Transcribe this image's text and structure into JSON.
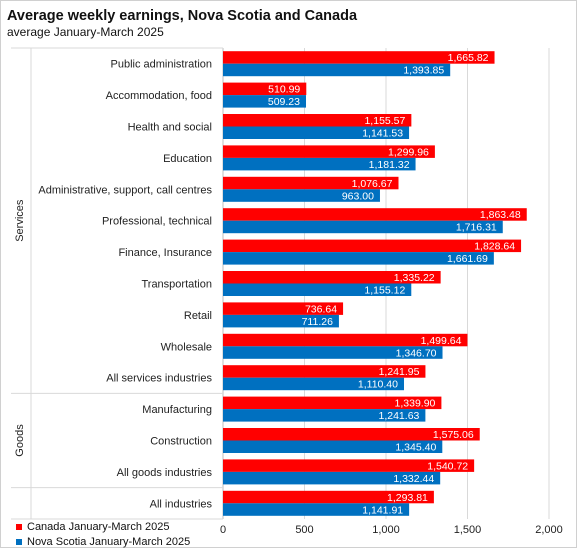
{
  "title": "Average weekly earnings, Nova Scotia and Canada",
  "subtitle": "average  January-March  2025",
  "colors": {
    "canada": "#ff0000",
    "nova_scotia": "#0070c0"
  },
  "chart_data": {
    "type": "bar",
    "orientation": "horizontal",
    "title": "Average weekly earnings, Nova Scotia and Canada",
    "subtitle": "average  January-March  2025",
    "xlim": [
      0,
      2000
    ],
    "xticks": [
      0,
      500,
      1000,
      1500,
      2000
    ],
    "xtick_labels": [
      "0",
      "500",
      "1,000",
      "1,500",
      "2,000"
    ],
    "grid": true,
    "legend_position": "bottom-left",
    "categories": [
      "Public administration",
      "Accommodation, food",
      "Health and social",
      "Education",
      "Administrative, support, call centres",
      "Professional, technical",
      "Finance, Insurance",
      "Transportation",
      "Retail",
      "Wholesale",
      "All services industries",
      "Manufacturing",
      "Construction",
      "All goods industries",
      "All industries"
    ],
    "groups": [
      {
        "label": "Services",
        "from": 0,
        "to": 10
      },
      {
        "label": "Goods",
        "from": 11,
        "to": 13
      }
    ],
    "series": [
      {
        "name": "Canada January-March 2025",
        "color": "#ff0000",
        "values": [
          1665.82,
          510.99,
          1155.57,
          1299.96,
          1076.67,
          1863.48,
          1828.64,
          1335.22,
          736.64,
          1499.64,
          1241.95,
          1339.9,
          1575.06,
          1540.72,
          1293.81
        ],
        "labels": [
          "1,665.82",
          "510.99",
          "1,155.57",
          "1,299.96",
          "1,076.67",
          "1,863.48",
          "1,828.64",
          "1,335.22",
          "736.64",
          "1,499.64",
          "1,241.95",
          "1,339.90",
          "1,575.06",
          "1,540.72",
          "1,293.81"
        ]
      },
      {
        "name": "Nova Scotia January-March 2025",
        "color": "#0070c0",
        "values": [
          1393.85,
          509.23,
          1141.53,
          1181.32,
          963.0,
          1716.31,
          1661.69,
          1155.12,
          711.26,
          1346.7,
          1110.4,
          1241.63,
          1345.4,
          1332.44,
          1141.91
        ],
        "labels": [
          "1,393.85",
          "509.23",
          "1,141.53",
          "1,181.32",
          "963.00",
          "1,716.31",
          "1,661.69",
          "1,155.12",
          "711.26",
          "1,346.70",
          "1,110.40",
          "1,241.63",
          "1,345.40",
          "1,332.44",
          "1,141.91"
        ]
      }
    ]
  }
}
